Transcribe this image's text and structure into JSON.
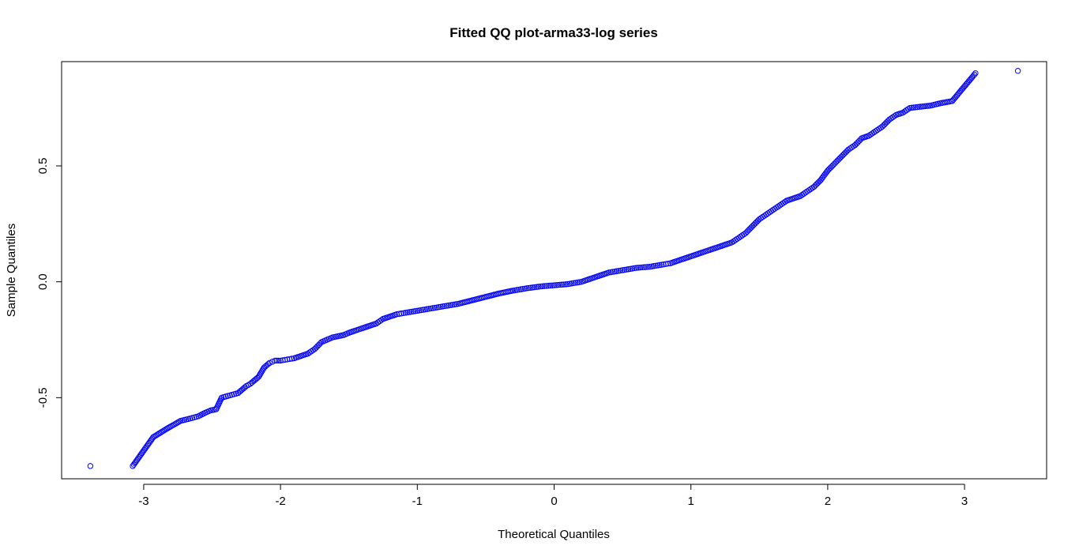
{
  "chart_data": {
    "type": "scatter",
    "title": "Fitted QQ plot-arma33-log series",
    "xlabel": "Theoretical Quantiles",
    "ylabel": "Sample Quantiles",
    "xlim": [
      -3.6,
      3.6
    ],
    "ylim": [
      -0.85,
      0.95
    ],
    "x_ticks": [
      -3,
      -2,
      -1,
      0,
      1,
      2,
      3
    ],
    "x_tick_labels": [
      "-3",
      "-2",
      "-1",
      "0",
      "1",
      "2",
      "3"
    ],
    "y_ticks": [
      -0.5,
      0.0,
      0.5
    ],
    "y_tick_labels": [
      "-0.5",
      "0.0",
      "0.5"
    ],
    "grid": false,
    "legend": "none",
    "point_color": "#0000ff",
    "series": [
      {
        "x": [
          -3.39,
          -3.08,
          -2.93,
          -2.82,
          -2.73,
          -2.66,
          -2.6,
          -2.55,
          -2.51,
          -2.47,
          -2.43,
          -2.4,
          -2.37,
          -2.34,
          -2.31,
          -2.29,
          -2.27,
          -2.25,
          -2.22,
          -2.2,
          -2.18,
          -2.16,
          -2.14,
          -2.12,
          -2.1,
          -2.08,
          -2.06,
          -2.04,
          -2.0,
          -1.95,
          -1.9,
          -1.85,
          -1.8,
          -1.75,
          -1.7,
          -1.66,
          -1.62,
          -1.58,
          -1.54,
          -1.5,
          -1.45,
          -1.4,
          -1.35,
          -1.3,
          -1.25,
          -1.2,
          -1.15,
          -1.1,
          -1.0,
          -0.9,
          -0.8,
          -0.7,
          -0.6,
          -0.5,
          -0.4,
          -0.3,
          -0.2,
          -0.1,
          0.0,
          0.1,
          0.2,
          0.3,
          0.4,
          0.5,
          0.6,
          0.7,
          0.8,
          0.85,
          0.9,
          1.0,
          1.1,
          1.2,
          1.3,
          1.35,
          1.4,
          1.45,
          1.5,
          1.55,
          1.6,
          1.65,
          1.7,
          1.75,
          1.8,
          1.85,
          1.9,
          1.95,
          2.0,
          2.05,
          2.1,
          2.15,
          2.2,
          2.25,
          2.3,
          2.35,
          2.4,
          2.45,
          2.5,
          2.55,
          2.6,
          2.67,
          2.75,
          2.82,
          2.91,
          3.08,
          3.39
        ],
        "y": [
          -0.795,
          -0.795,
          -0.67,
          -0.63,
          -0.6,
          -0.59,
          -0.58,
          -0.565,
          -0.555,
          -0.55,
          -0.5,
          -0.495,
          -0.49,
          -0.485,
          -0.48,
          -0.47,
          -0.46,
          -0.45,
          -0.44,
          -0.43,
          -0.42,
          -0.41,
          -0.39,
          -0.37,
          -0.36,
          -0.35,
          -0.345,
          -0.34,
          -0.34,
          -0.335,
          -0.33,
          -0.32,
          -0.31,
          -0.29,
          -0.26,
          -0.25,
          -0.24,
          -0.235,
          -0.23,
          -0.22,
          -0.21,
          -0.2,
          -0.19,
          -0.18,
          -0.16,
          -0.15,
          -0.14,
          -0.135,
          -0.125,
          -0.115,
          -0.105,
          -0.095,
          -0.08,
          -0.065,
          -0.05,
          -0.038,
          -0.028,
          -0.02,
          -0.015,
          -0.01,
          0.0,
          0.02,
          0.04,
          0.05,
          0.06,
          0.065,
          0.075,
          0.08,
          0.09,
          0.11,
          0.13,
          0.15,
          0.17,
          0.19,
          0.21,
          0.24,
          0.27,
          0.29,
          0.31,
          0.33,
          0.35,
          0.36,
          0.37,
          0.39,
          0.41,
          0.44,
          0.48,
          0.51,
          0.54,
          0.57,
          0.59,
          0.62,
          0.63,
          0.65,
          0.67,
          0.7,
          0.72,
          0.73,
          0.75,
          0.755,
          0.76,
          0.77,
          0.78,
          0.9,
          0.91
        ]
      }
    ]
  }
}
